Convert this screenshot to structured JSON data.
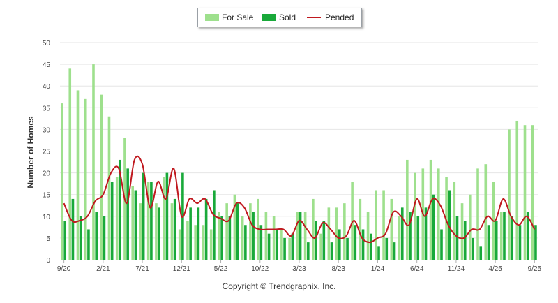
{
  "legend": {
    "for_sale": "For Sale",
    "sold": "Sold",
    "pended": "Pended"
  },
  "copyright": "Copyright © Trendgraphix, Inc.",
  "colors": {
    "for_sale": "#9ee08d",
    "sold": "#19a93a",
    "pended": "#c0191f",
    "grid": "#e6e6e6"
  },
  "chart_data": {
    "type": "bar",
    "ylabel": "Number of Homes",
    "xlabel": "",
    "ylim": [
      0,
      50
    ],
    "yticks": [
      0,
      5,
      10,
      15,
      20,
      25,
      30,
      35,
      40,
      45,
      50
    ],
    "grid": true,
    "legend_position": "top-center",
    "x_tick_labels": [
      {
        "index": 0,
        "label": "9/20"
      },
      {
        "index": 5,
        "label": "2/21"
      },
      {
        "index": 10,
        "label": "7/21"
      },
      {
        "index": 15,
        "label": "12/21"
      },
      {
        "index": 20,
        "label": "5/22"
      },
      {
        "index": 25,
        "label": "10/22"
      },
      {
        "index": 30,
        "label": "3/23"
      },
      {
        "index": 35,
        "label": "8/23"
      },
      {
        "index": 40,
        "label": "1/24"
      },
      {
        "index": 45,
        "label": "6/24"
      },
      {
        "index": 50,
        "label": "11/24"
      },
      {
        "index": 55,
        "label": "4/25"
      },
      {
        "index": 60,
        "label": "9/25"
      }
    ],
    "series": [
      {
        "name": "For Sale",
        "type": "bar",
        "values": [
          36,
          44,
          39,
          37,
          45,
          38,
          33,
          19,
          28,
          17,
          13,
          18,
          13,
          19,
          13,
          7,
          9,
          8,
          8,
          7,
          11,
          13,
          15,
          10,
          13,
          14,
          11,
          10,
          7,
          5,
          11,
          11,
          14,
          6,
          12,
          12,
          13,
          18,
          14,
          11,
          16,
          16,
          14,
          10,
          23,
          20,
          21,
          23,
          21,
          19,
          18,
          13,
          15,
          21,
          22,
          18,
          11,
          30,
          32,
          31,
          31
        ]
      },
      {
        "name": "Sold",
        "type": "bar",
        "values": [
          9,
          14,
          10,
          7,
          11,
          10,
          18,
          23,
          21,
          16,
          20,
          18,
          12,
          20,
          14,
          20,
          12,
          12,
          14,
          16,
          10,
          10,
          13,
          8,
          11,
          8,
          6,
          7,
          5,
          6,
          11,
          4,
          9,
          9,
          4,
          7,
          5,
          8,
          7,
          6,
          3,
          5,
          4,
          12,
          11,
          10,
          12,
          15,
          7,
          16,
          10,
          9,
          5,
          3,
          8,
          9,
          11,
          10,
          8,
          11,
          8
        ]
      },
      {
        "name": "Pended",
        "type": "line",
        "values": [
          13,
          9,
          9,
          10,
          13.5,
          15,
          20,
          21,
          13,
          23,
          22,
          12,
          18,
          14,
          21,
          10,
          14,
          13,
          14,
          10.5,
          9.5,
          9,
          13,
          12,
          8,
          7,
          7,
          7,
          7,
          5.5,
          9,
          7,
          5,
          8.5,
          7,
          5,
          5.5,
          9,
          5,
          4,
          5,
          6,
          11,
          10,
          8,
          14,
          10,
          14,
          12.5,
          8,
          5.5,
          5,
          7,
          7,
          10,
          9,
          14,
          10,
          8,
          10,
          7
        ]
      }
    ]
  }
}
